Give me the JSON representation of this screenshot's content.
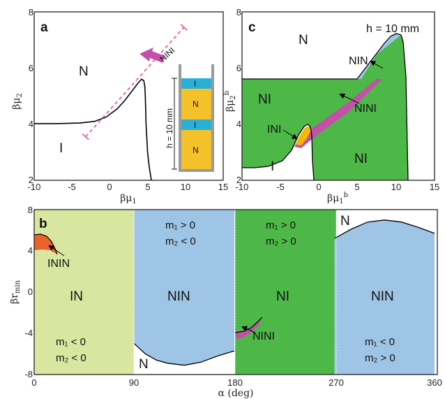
{
  "colors": {
    "I_N_region": "#d8e6a0",
    "NIN_region": "#9ec5e6",
    "NI_region": "#4db848",
    "ININ_region": "#e8622a",
    "NINI_region": "#c152a8",
    "INI_region": "#f5b800",
    "arrow": "#c152a8",
    "dashed_line": "#e060a8",
    "inset_N": "#f5c12a",
    "inset_I": "#2ab0d8",
    "curve": "#000000"
  },
  "chart_data": [
    {
      "panel": "a",
      "type": "line",
      "xlabel": "βμ1",
      "ylabel": "βμ2",
      "xlim": [
        -10,
        15
      ],
      "ylim": [
        2,
        8
      ],
      "xticks": [
        "-10",
        "-5",
        "0",
        "5",
        "10",
        "15"
      ],
      "yticks": [
        "2",
        "4",
        "6",
        "8"
      ],
      "series": [
        {
          "x": [
            -10,
            -7,
            -4,
            -2,
            -0.5,
            1,
            2,
            3,
            3.7,
            4.2,
            4.5,
            4.65,
            4.7,
            4.75,
            4.8,
            4.9,
            5.0,
            5.2,
            5.5
          ],
          "y": [
            4.02,
            4.02,
            4.04,
            4.1,
            4.25,
            4.55,
            4.85,
            5.2,
            5.45,
            5.6,
            5.55,
            5.3,
            5.0,
            4.5,
            4.0,
            3.5,
            3.0,
            2.5,
            2.0
          ]
        }
      ],
      "regions": [
        {
          "label": "N",
          "x": -3.3,
          "y": 6.3
        },
        {
          "label": "I",
          "x": -7.8,
          "y": 3.25
        }
      ],
      "annotation": {
        "label": "NINI",
        "dashed_from": [
          -3.2,
          3.55
        ],
        "dashed_to": [
          9.8,
          7.45
        ]
      },
      "inset": {
        "label": "h = 10 mm",
        "layers": [
          "I",
          "N",
          "I",
          "N"
        ]
      }
    },
    {
      "panel": "c",
      "type": "area",
      "xlabel": "βμ1b",
      "ylabel": "βμ2b",
      "xlim": [
        -10,
        15
      ],
      "ylim": [
        2,
        8
      ],
      "xticks": [
        "-10",
        "-5",
        "0",
        "5",
        "10",
        "15"
      ],
      "yticks": [
        "2",
        "4",
        "6",
        "8"
      ],
      "note": "h = 10 mm",
      "regions": [
        "N",
        "NIN",
        "NI",
        "NINI",
        "INI",
        "I",
        "NI"
      ]
    },
    {
      "panel": "b",
      "type": "area",
      "xlabel": "α (deg)",
      "ylabel": "βr_min",
      "xlim": [
        0,
        360
      ],
      "ylim": [
        -8,
        8
      ],
      "xticks": [
        "0",
        "90",
        "180",
        "270",
        "360"
      ],
      "yticks": [
        "-8",
        "-4",
        "0",
        "4",
        "8"
      ],
      "upper_boundary": {
        "x": [
          270,
          285,
          300,
          315,
          330,
          345,
          360
        ],
        "y": [
          5.2,
          6.1,
          6.8,
          7.0,
          6.8,
          6.3,
          5.7
        ]
      },
      "lower_boundary": {
        "x": [
          90,
          100,
          110,
          120,
          135,
          150,
          165,
          180
        ],
        "y": [
          -5.0,
          -6.0,
          -6.6,
          -6.9,
          -7.1,
          -6.8,
          -6.2,
          -5.7
        ]
      },
      "regions": [
        "IN",
        "NIN",
        "NI",
        "NIN",
        "ININ",
        "NINI",
        "N",
        "N"
      ],
      "conditions": {
        "q1": {
          "m1": "m₁ < 0",
          "m2": "m₂ < 0"
        },
        "q2": {
          "m1": "m₁ > 0",
          "m2": "m₂ < 0"
        },
        "q3": {
          "m1": "m₁ > 0",
          "m2": "m₂ > 0"
        },
        "q4": {
          "m1": "m₁ < 0",
          "m2": "m₂ > 0"
        }
      }
    }
  ],
  "text": {
    "a": {
      "panel": "a",
      "N": "N",
      "I": "I",
      "NINI": "NINI",
      "inset_h": "h = 10 mm",
      "inset_I": "I",
      "inset_N": "N"
    },
    "c": {
      "panel": "c",
      "N": "N",
      "NIN": "NIN",
      "NI_left": "NI",
      "NI_right": "NI",
      "NINI": "NINI",
      "INI": "INI",
      "I": "I",
      "note": "h = 10 mm"
    },
    "b": {
      "panel": "b",
      "IN": "IN",
      "NIN_left": "NIN",
      "NI": "NI",
      "NIN_right": "NIN",
      "ININ": "ININ",
      "NINI": "NINI",
      "N_low": "N",
      "N_high": "N"
    },
    "xt_a": [
      "-10",
      "-5",
      "0",
      "5",
      "10",
      "15"
    ],
    "yt_a": [
      "2",
      "4",
      "6",
      "8"
    ],
    "xt_b": [
      "0",
      "90",
      "180",
      "270",
      "360"
    ],
    "yt_b": [
      "-8",
      "-4",
      "0",
      "4",
      "8"
    ]
  }
}
